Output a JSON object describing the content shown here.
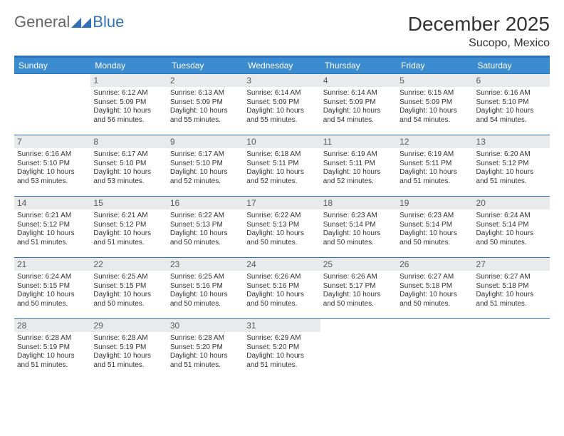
{
  "brand": {
    "part1": "General",
    "part2": "Blue"
  },
  "colors": {
    "accent": "#2f72b8",
    "header_bg": "#3a8bd0",
    "header_text": "#ffffff",
    "daynum_bg": "#e9eaec",
    "daynum_text": "#5a5a5a",
    "body_text": "#333333",
    "page_bg": "#ffffff"
  },
  "title": "December 2025",
  "location": "Sucopo, Mexico",
  "weekdays": [
    "Sunday",
    "Monday",
    "Tuesday",
    "Wednesday",
    "Thursday",
    "Friday",
    "Saturday"
  ],
  "layout": {
    "columns": 7,
    "rows": 5,
    "start_offset": 1,
    "days_in_month": 31
  },
  "fonts": {
    "title_size": 28,
    "location_size": 16,
    "header_size": 12,
    "daynum_size": 12,
    "body_size": 10
  },
  "days": [
    {
      "n": 1,
      "sunrise": "6:12 AM",
      "sunset": "5:09 PM",
      "daylight": "10 hours and 56 minutes."
    },
    {
      "n": 2,
      "sunrise": "6:13 AM",
      "sunset": "5:09 PM",
      "daylight": "10 hours and 55 minutes."
    },
    {
      "n": 3,
      "sunrise": "6:14 AM",
      "sunset": "5:09 PM",
      "daylight": "10 hours and 55 minutes."
    },
    {
      "n": 4,
      "sunrise": "6:14 AM",
      "sunset": "5:09 PM",
      "daylight": "10 hours and 54 minutes."
    },
    {
      "n": 5,
      "sunrise": "6:15 AM",
      "sunset": "5:09 PM",
      "daylight": "10 hours and 54 minutes."
    },
    {
      "n": 6,
      "sunrise": "6:16 AM",
      "sunset": "5:10 PM",
      "daylight": "10 hours and 54 minutes."
    },
    {
      "n": 7,
      "sunrise": "6:16 AM",
      "sunset": "5:10 PM",
      "daylight": "10 hours and 53 minutes."
    },
    {
      "n": 8,
      "sunrise": "6:17 AM",
      "sunset": "5:10 PM",
      "daylight": "10 hours and 53 minutes."
    },
    {
      "n": 9,
      "sunrise": "6:17 AM",
      "sunset": "5:10 PM",
      "daylight": "10 hours and 52 minutes."
    },
    {
      "n": 10,
      "sunrise": "6:18 AM",
      "sunset": "5:11 PM",
      "daylight": "10 hours and 52 minutes."
    },
    {
      "n": 11,
      "sunrise": "6:19 AM",
      "sunset": "5:11 PM",
      "daylight": "10 hours and 52 minutes."
    },
    {
      "n": 12,
      "sunrise": "6:19 AM",
      "sunset": "5:11 PM",
      "daylight": "10 hours and 51 minutes."
    },
    {
      "n": 13,
      "sunrise": "6:20 AM",
      "sunset": "5:12 PM",
      "daylight": "10 hours and 51 minutes."
    },
    {
      "n": 14,
      "sunrise": "6:21 AM",
      "sunset": "5:12 PM",
      "daylight": "10 hours and 51 minutes."
    },
    {
      "n": 15,
      "sunrise": "6:21 AM",
      "sunset": "5:12 PM",
      "daylight": "10 hours and 51 minutes."
    },
    {
      "n": 16,
      "sunrise": "6:22 AM",
      "sunset": "5:13 PM",
      "daylight": "10 hours and 50 minutes."
    },
    {
      "n": 17,
      "sunrise": "6:22 AM",
      "sunset": "5:13 PM",
      "daylight": "10 hours and 50 minutes."
    },
    {
      "n": 18,
      "sunrise": "6:23 AM",
      "sunset": "5:14 PM",
      "daylight": "10 hours and 50 minutes."
    },
    {
      "n": 19,
      "sunrise": "6:23 AM",
      "sunset": "5:14 PM",
      "daylight": "10 hours and 50 minutes."
    },
    {
      "n": 20,
      "sunrise": "6:24 AM",
      "sunset": "5:14 PM",
      "daylight": "10 hours and 50 minutes."
    },
    {
      "n": 21,
      "sunrise": "6:24 AM",
      "sunset": "5:15 PM",
      "daylight": "10 hours and 50 minutes."
    },
    {
      "n": 22,
      "sunrise": "6:25 AM",
      "sunset": "5:15 PM",
      "daylight": "10 hours and 50 minutes."
    },
    {
      "n": 23,
      "sunrise": "6:25 AM",
      "sunset": "5:16 PM",
      "daylight": "10 hours and 50 minutes."
    },
    {
      "n": 24,
      "sunrise": "6:26 AM",
      "sunset": "5:16 PM",
      "daylight": "10 hours and 50 minutes."
    },
    {
      "n": 25,
      "sunrise": "6:26 AM",
      "sunset": "5:17 PM",
      "daylight": "10 hours and 50 minutes."
    },
    {
      "n": 26,
      "sunrise": "6:27 AM",
      "sunset": "5:18 PM",
      "daylight": "10 hours and 50 minutes."
    },
    {
      "n": 27,
      "sunrise": "6:27 AM",
      "sunset": "5:18 PM",
      "daylight": "10 hours and 51 minutes."
    },
    {
      "n": 28,
      "sunrise": "6:28 AM",
      "sunset": "5:19 PM",
      "daylight": "10 hours and 51 minutes."
    },
    {
      "n": 29,
      "sunrise": "6:28 AM",
      "sunset": "5:19 PM",
      "daylight": "10 hours and 51 minutes."
    },
    {
      "n": 30,
      "sunrise": "6:28 AM",
      "sunset": "5:20 PM",
      "daylight": "10 hours and 51 minutes."
    },
    {
      "n": 31,
      "sunrise": "6:29 AM",
      "sunset": "5:20 PM",
      "daylight": "10 hours and 51 minutes."
    }
  ],
  "labels": {
    "sunrise": "Sunrise:",
    "sunset": "Sunset:",
    "daylight": "Daylight:"
  }
}
